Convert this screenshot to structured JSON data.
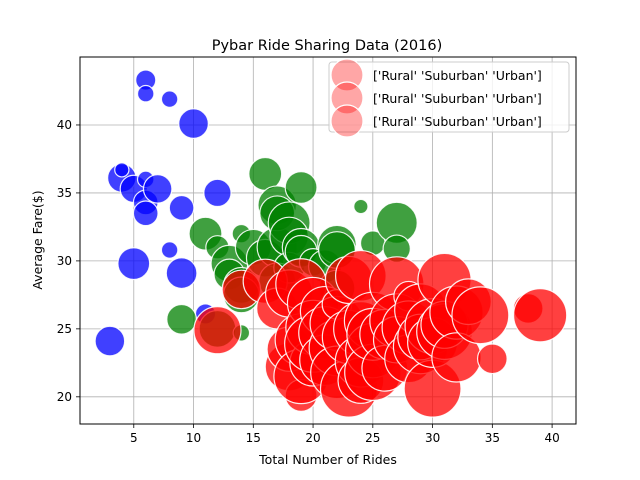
{
  "chart_data": {
    "type": "scatter",
    "title": "Pybar Ride Sharing Data (2016)",
    "xlabel": "Total Number of Rides",
    "ylabel": "Average Fare($)",
    "xlim": [
      0.5,
      42
    ],
    "ylim": [
      18,
      45
    ],
    "xticks": [
      5,
      10,
      15,
      20,
      25,
      30,
      35,
      40
    ],
    "yticks": [
      20,
      25,
      30,
      35,
      40
    ],
    "grid": true,
    "legend": {
      "position": "upper-right",
      "entries": [
        "['Rural' 'Suburban' 'Urban']",
        "['Rural' 'Suburban' 'Urban']",
        "['Rural' 'Suburban' 'Urban']"
      ]
    },
    "colors": {
      "Rural": "#0000ff",
      "Suburban": "#008000",
      "Urban": "#ff0000",
      "edge": "#ffffff"
    },
    "series": [
      {
        "color_key": "Rural",
        "points": [
          {
            "x": 3,
            "y": 24.1,
            "s": 13
          },
          {
            "x": 4,
            "y": 36.1,
            "s": 12
          },
          {
            "x": 4,
            "y": 36.7,
            "s": 3
          },
          {
            "x": 5,
            "y": 35.3,
            "s": 11
          },
          {
            "x": 5,
            "y": 29.8,
            "s": 15
          },
          {
            "x": 6,
            "y": 43.3,
            "s": 6
          },
          {
            "x": 6,
            "y": 42.3,
            "s": 4
          },
          {
            "x": 6,
            "y": 34.3,
            "s": 9
          },
          {
            "x": 6,
            "y": 33.5,
            "s": 9
          },
          {
            "x": 6,
            "y": 36.0,
            "s": 4
          },
          {
            "x": 7,
            "y": 35.3,
            "s": 12
          },
          {
            "x": 8,
            "y": 41.9,
            "s": 4
          },
          {
            "x": 8,
            "y": 30.8,
            "s": 4
          },
          {
            "x": 9,
            "y": 33.9,
            "s": 9
          },
          {
            "x": 9,
            "y": 29.1,
            "s": 14
          },
          {
            "x": 10,
            "y": 40.1,
            "s": 13
          },
          {
            "x": 11,
            "y": 26.1,
            "s": 6
          },
          {
            "x": 12,
            "y": 35.0,
            "s": 11
          }
        ]
      },
      {
        "color_key": "Suburban",
        "points": [
          {
            "x": 9,
            "y": 25.7,
            "s": 13
          },
          {
            "x": 11,
            "y": 32.0,
            "s": 16
          },
          {
            "x": 12,
            "y": 31.0,
            "s": 8
          },
          {
            "x": 12,
            "y": 25.0,
            "s": 20
          },
          {
            "x": 13,
            "y": 29.8,
            "s": 20
          },
          {
            "x": 13,
            "y": 29.0,
            "s": 14
          },
          {
            "x": 14,
            "y": 28.2,
            "s": 19
          },
          {
            "x": 14,
            "y": 32.0,
            "s": 5
          },
          {
            "x": 14,
            "y": 27.5,
            "s": 19
          },
          {
            "x": 14,
            "y": 24.7,
            "s": 4
          },
          {
            "x": 15,
            "y": 31.0,
            "s": 19
          },
          {
            "x": 16,
            "y": 36.4,
            "s": 16
          },
          {
            "x": 16,
            "y": 30.2,
            "s": 21
          },
          {
            "x": 17,
            "y": 34.1,
            "s": 22
          },
          {
            "x": 17,
            "y": 31.0,
            "s": 24
          },
          {
            "x": 17,
            "y": 33.5,
            "s": 18
          },
          {
            "x": 17,
            "y": 28.5,
            "s": 20
          },
          {
            "x": 18,
            "y": 32.8,
            "s": 26
          },
          {
            "x": 18,
            "y": 31.8,
            "s": 22
          },
          {
            "x": 18,
            "y": 29.5,
            "s": 14
          },
          {
            "x": 19,
            "y": 35.4,
            "s": 15
          },
          {
            "x": 19,
            "y": 31.0,
            "s": 21
          },
          {
            "x": 19,
            "y": 30.7,
            "s": 15
          },
          {
            "x": 20,
            "y": 29.9,
            "s": 11
          },
          {
            "x": 21,
            "y": 29.6,
            "s": 16
          },
          {
            "x": 22,
            "y": 31.2,
            "s": 22
          },
          {
            "x": 22,
            "y": 30.8,
            "s": 20
          },
          {
            "x": 22,
            "y": 28.0,
            "s": 19
          },
          {
            "x": 24,
            "y": 34.0,
            "s": 3
          },
          {
            "x": 25,
            "y": 31.3,
            "s": 9
          },
          {
            "x": 27,
            "y": 32.8,
            "s": 25
          },
          {
            "x": 27,
            "y": 30.9,
            "s": 11
          }
        ]
      },
      {
        "color_key": "Urban",
        "points": [
          {
            "x": 12,
            "y": 24.9,
            "s": 33
          },
          {
            "x": 14,
            "y": 27.9,
            "s": 22
          },
          {
            "x": 16,
            "y": 28.5,
            "s": 29
          },
          {
            "x": 17,
            "y": 26.5,
            "s": 25
          },
          {
            "x": 18,
            "y": 27.6,
            "s": 33
          },
          {
            "x": 18,
            "y": 22.2,
            "s": 34
          },
          {
            "x": 18,
            "y": 23.5,
            "s": 29
          },
          {
            "x": 19,
            "y": 20.1,
            "s": 15
          },
          {
            "x": 19,
            "y": 28.3,
            "s": 38
          },
          {
            "x": 19,
            "y": 24.2,
            "s": 40
          },
          {
            "x": 19,
            "y": 21.5,
            "s": 44
          },
          {
            "x": 20,
            "y": 22.5,
            "s": 32
          },
          {
            "x": 20,
            "y": 26.9,
            "s": 39
          },
          {
            "x": 20,
            "y": 25.1,
            "s": 44
          },
          {
            "x": 20,
            "y": 23.9,
            "s": 48
          },
          {
            "x": 21,
            "y": 26.3,
            "s": 36
          },
          {
            "x": 21,
            "y": 24.7,
            "s": 41
          },
          {
            "x": 21,
            "y": 22.7,
            "s": 38
          },
          {
            "x": 22,
            "y": 23.6,
            "s": 46
          },
          {
            "x": 22,
            "y": 25.4,
            "s": 43
          },
          {
            "x": 22,
            "y": 21.8,
            "s": 41
          },
          {
            "x": 22,
            "y": 26.8,
            "s": 13
          },
          {
            "x": 23,
            "y": 20.6,
            "s": 48
          },
          {
            "x": 23,
            "y": 24.4,
            "s": 42
          },
          {
            "x": 23,
            "y": 28.6,
            "s": 33
          },
          {
            "x": 24,
            "y": 25.0,
            "s": 44
          },
          {
            "x": 24,
            "y": 28.9,
            "s": 38
          },
          {
            "x": 24,
            "y": 22.6,
            "s": 39
          },
          {
            "x": 24,
            "y": 21.2,
            "s": 31
          },
          {
            "x": 25,
            "y": 25.6,
            "s": 48
          },
          {
            "x": 25,
            "y": 23.4,
            "s": 44
          },
          {
            "x": 25,
            "y": 21.8,
            "s": 47
          },
          {
            "x": 25,
            "y": 24.6,
            "s": 40
          },
          {
            "x": 26,
            "y": 24.6,
            "s": 37
          },
          {
            "x": 26,
            "y": 22.1,
            "s": 31
          },
          {
            "x": 27,
            "y": 28.3,
            "s": 44
          },
          {
            "x": 27,
            "y": 25.6,
            "s": 43
          },
          {
            "x": 27,
            "y": 24.2,
            "s": 32
          },
          {
            "x": 28,
            "y": 27.4,
            "s": 13
          },
          {
            "x": 28,
            "y": 25.1,
            "s": 42
          },
          {
            "x": 28,
            "y": 22.8,
            "s": 34
          },
          {
            "x": 29,
            "y": 23.7,
            "s": 44
          },
          {
            "x": 29,
            "y": 26.4,
            "s": 40
          },
          {
            "x": 29,
            "y": 24.4,
            "s": 31
          },
          {
            "x": 30,
            "y": 20.6,
            "s": 48
          },
          {
            "x": 30,
            "y": 25.2,
            "s": 45
          },
          {
            "x": 30,
            "y": 24.0,
            "s": 37
          },
          {
            "x": 31,
            "y": 28.6,
            "s": 42
          },
          {
            "x": 31,
            "y": 24.8,
            "s": 46
          },
          {
            "x": 31,
            "y": 25.3,
            "s": 33
          },
          {
            "x": 32,
            "y": 26.2,
            "s": 42
          },
          {
            "x": 32,
            "y": 22.9,
            "s": 36
          },
          {
            "x": 33,
            "y": 27.0,
            "s": 31
          },
          {
            "x": 34,
            "y": 26.0,
            "s": 48
          },
          {
            "x": 35,
            "y": 22.8,
            "s": 13
          },
          {
            "x": 38,
            "y": 26.5,
            "s": 13
          },
          {
            "x": 39,
            "y": 26.0,
            "s": 42
          }
        ]
      }
    ]
  }
}
